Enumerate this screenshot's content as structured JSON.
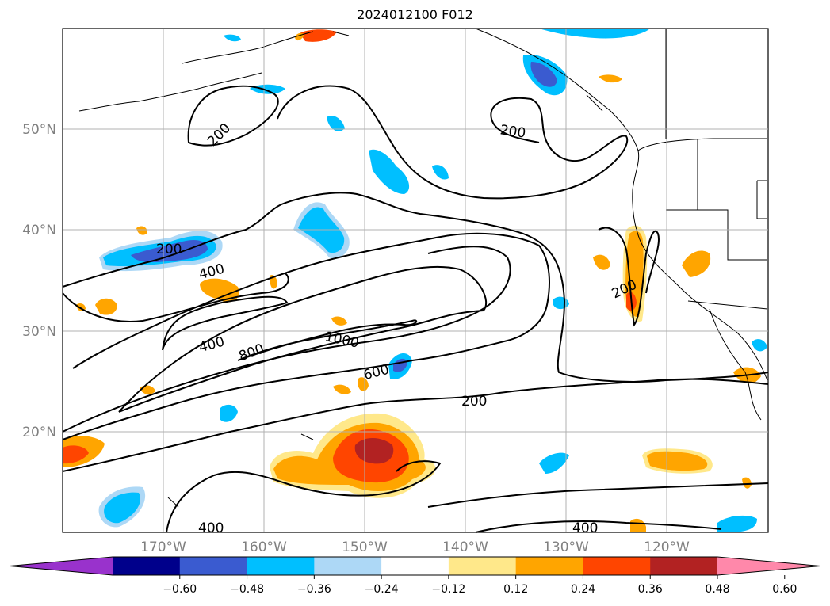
{
  "title": "2024012100 F012",
  "map": {
    "lat_labels": [
      "50°N",
      "40°N",
      "30°N",
      "20°N"
    ],
    "lon_labels": [
      "170°W",
      "160°W",
      "150°W",
      "140°W",
      "130°W",
      "120°W"
    ],
    "contour_labels": [
      "200",
      "200",
      "200",
      "200",
      "200",
      "400",
      "400",
      "800",
      "1000",
      "600",
      "400",
      "400"
    ]
  },
  "colorbar": {
    "ticks": [
      "−0.60",
      "−0.48",
      "−0.36",
      "−0.24",
      "−0.12",
      "0.12",
      "0.24",
      "0.36",
      "0.48",
      "0.60"
    ],
    "colors": [
      "#9932cc",
      "#00008b",
      "#3a5bd0",
      "#00bfff",
      "#add8f6",
      "#ffffff",
      "#ffe88a",
      "#ffa500",
      "#ff4500",
      "#b22222",
      "#ff88aa"
    ],
    "extend": "both"
  },
  "colors": {
    "grid": "#b0b0b0",
    "axis_label": "#808080"
  }
}
